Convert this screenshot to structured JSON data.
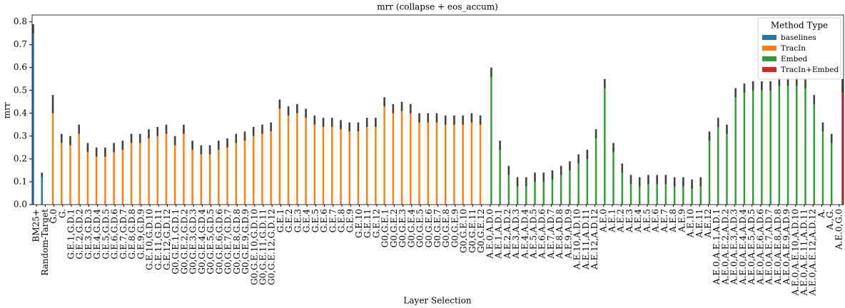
{
  "chart_data": {
    "type": "bar",
    "title": "mrr (collapse + eos_accum)",
    "x_label": "Layer Selection",
    "y_label": "mrr",
    "categories": [
      "BM25+",
      "Random-Target",
      "G.0",
      "G.",
      "G.E.1,G.D.1",
      "G.E.2,G.D.2",
      "G.E.3,G.D.3",
      "G.E.4,G.D.4",
      "G.E.5,G.D.5",
      "G.E.6,G.D.6",
      "G.E.7,G.D.7",
      "G.E.8,G.D.8",
      "G.E.9,G.D.9",
      "G.E.10,G.D.10",
      "G.E.11,G.D.11",
      "G.E.12,G.D.12",
      "G0,G.E.1,G.D.1",
      "G0,G.E.2,G.D.2",
      "G0,G.E.3,G.D.3",
      "G0,G.E.4,G.D.4",
      "G0,G.E.5,G.D.5",
      "G0,G.E.6,G.D.6",
      "G0,G.E.7,G.D.7",
      "G0,G.E.8,G.D.8",
      "G0,G.E.9,G.D.9",
      "G0,G.E.10,G.D.10",
      "G0,G.E.11,G.D.11",
      "G0,G.E.12,G.D.12",
      "G.E.1",
      "G.E.2",
      "G.E.3",
      "G.E.4",
      "G.E.5",
      "G.E.6",
      "G.E.7",
      "G.E.8",
      "G.E.9",
      "G.E.10",
      "G.E.11",
      "G.E.12",
      "G0,G.E.1",
      "G0,G.E.2",
      "G0,G.E.3",
      "G0,G.E.4",
      "G0,G.E.5",
      "G0,G.E.6",
      "G0,G.E.7",
      "G0,G.E.8",
      "G0,G.E.9",
      "G0,G.E.10",
      "G0,G.E.11",
      "G0,G.E.12",
      "A.E.0,A.D.0",
      "A.E.1,A.D.1",
      "A.E.2,A.D.2",
      "A.E.3,A.D.3",
      "A.E.4,A.D.4",
      "A.E.5,A.D.5",
      "A.E.6,A.D.6",
      "A.E.7,A.D.7",
      "A.E.8,A.D.8",
      "A.E.9,A.D.9",
      "A.E.10,A.D.10",
      "A.E.11,A.D.11",
      "A.E.12,A.D.12",
      "A.E.0",
      "A.E.1",
      "A.E.2",
      "A.E.3",
      "A.E.4",
      "A.E.5",
      "A.E.6",
      "A.E.7",
      "A.E.8",
      "A.E.9",
      "A.E.10",
      "A.E.11",
      "A.E.12",
      "A.E.0,A.E.1,A.D.1",
      "A.E.0,A.E.2,A.D.2",
      "A.E.0,A.E.3,A.D.3",
      "A.E.0,A.E.4,A.D.4",
      "A.E.0,A.E.5,A.D.5",
      "A.E.0,A.E.6,A.D.6",
      "A.E.0,A.E.7,A.D.7",
      "A.E.0,A.E.8,A.D.8",
      "A.E.0,A.E.9,A.D.9",
      "A.E.0,A.E.10,A.D.10",
      "A.E.0,A.E.11,A.D.11",
      "A.E.0,A.E.12,A.D.12",
      "A.",
      "A.,G.",
      "A.E.0,G.0"
    ],
    "series": [
      {
        "name": "baselines",
        "color": "#1f77b4",
        "values": [
          0.77,
          0.13,
          null,
          null,
          null,
          null,
          null,
          null,
          null,
          null,
          null,
          null,
          null,
          null,
          null,
          null,
          null,
          null,
          null,
          null,
          null,
          null,
          null,
          null,
          null,
          null,
          null,
          null,
          null,
          null,
          null,
          null,
          null,
          null,
          null,
          null,
          null,
          null,
          null,
          null,
          null,
          null,
          null,
          null,
          null,
          null,
          null,
          null,
          null,
          null,
          null,
          null,
          null,
          null,
          null,
          null,
          null,
          null,
          null,
          null,
          null,
          null,
          null,
          null,
          null,
          null,
          null,
          null,
          null,
          null,
          null,
          null,
          null,
          null,
          null,
          null,
          null,
          null,
          null,
          null,
          null,
          null,
          null,
          null,
          null,
          null,
          null,
          null,
          null,
          null,
          null,
          null,
          null
        ],
        "errors": [
          0.02,
          0.01,
          null,
          null,
          null,
          null,
          null,
          null,
          null,
          null,
          null,
          null,
          null,
          null,
          null,
          null,
          null,
          null,
          null,
          null,
          null,
          null,
          null,
          null,
          null,
          null,
          null,
          null,
          null,
          null,
          null,
          null,
          null,
          null,
          null,
          null,
          null,
          null,
          null,
          null,
          null,
          null,
          null,
          null,
          null,
          null,
          null,
          null,
          null,
          null,
          null,
          null,
          null,
          null,
          null,
          null,
          null,
          null,
          null,
          null,
          null,
          null,
          null,
          null,
          null,
          null,
          null,
          null,
          null,
          null,
          null,
          null,
          null,
          null,
          null,
          null,
          null,
          null,
          null,
          null,
          null,
          null,
          null,
          null,
          null,
          null,
          null,
          null,
          null,
          null,
          null,
          null,
          null
        ]
      },
      {
        "name": "TracIn",
        "color": "#ff7f0e",
        "values": [
          null,
          null,
          0.44,
          0.29,
          0.28,
          0.33,
          0.25,
          0.23,
          0.23,
          0.25,
          0.26,
          0.29,
          0.29,
          0.31,
          0.32,
          0.33,
          0.28,
          0.33,
          0.26,
          0.24,
          0.24,
          0.26,
          0.27,
          0.29,
          0.3,
          0.32,
          0.33,
          0.34,
          0.44,
          0.41,
          0.42,
          0.4,
          0.37,
          0.36,
          0.36,
          0.35,
          0.34,
          0.34,
          0.36,
          0.36,
          0.45,
          0.42,
          0.43,
          0.42,
          0.38,
          0.38,
          0.38,
          0.37,
          0.37,
          0.37,
          0.38,
          0.37,
          null,
          null,
          null,
          null,
          null,
          null,
          null,
          null,
          null,
          null,
          null,
          null,
          null,
          null,
          null,
          null,
          null,
          null,
          null,
          null,
          null,
          null,
          null,
          null,
          null,
          null,
          null,
          null,
          null,
          null,
          null,
          null,
          null,
          null,
          null,
          null,
          null,
          null,
          null,
          null,
          null
        ],
        "errors": [
          null,
          null,
          0.04,
          0.02,
          0.02,
          0.02,
          0.02,
          0.02,
          0.02,
          0.02,
          0.02,
          0.02,
          0.02,
          0.02,
          0.02,
          0.02,
          0.02,
          0.02,
          0.02,
          0.02,
          0.02,
          0.02,
          0.02,
          0.02,
          0.02,
          0.02,
          0.02,
          0.02,
          0.02,
          0.02,
          0.02,
          0.02,
          0.02,
          0.02,
          0.02,
          0.02,
          0.02,
          0.02,
          0.02,
          0.02,
          0.02,
          0.02,
          0.02,
          0.02,
          0.02,
          0.02,
          0.02,
          0.02,
          0.02,
          0.02,
          0.02,
          0.02,
          null,
          null,
          null,
          null,
          null,
          null,
          null,
          null,
          null,
          null,
          null,
          null,
          null,
          null,
          null,
          null,
          null,
          null,
          null,
          null,
          null,
          null,
          null,
          null,
          null,
          null,
          null,
          null,
          null,
          null,
          null,
          null,
          null,
          null,
          null,
          null,
          null,
          null,
          null,
          null,
          null
        ]
      },
      {
        "name": "Embed",
        "color": "#2ca02c",
        "values": [
          null,
          null,
          null,
          null,
          null,
          null,
          null,
          null,
          null,
          null,
          null,
          null,
          null,
          null,
          null,
          null,
          null,
          null,
          null,
          null,
          null,
          null,
          null,
          null,
          null,
          null,
          null,
          null,
          null,
          null,
          null,
          null,
          null,
          null,
          null,
          null,
          null,
          null,
          null,
          null,
          null,
          null,
          null,
          null,
          null,
          null,
          null,
          null,
          null,
          null,
          null,
          null,
          0.58,
          0.26,
          0.15,
          0.1,
          0.1,
          0.12,
          0.12,
          0.13,
          0.15,
          0.17,
          0.2,
          0.22,
          0.31,
          0.53,
          0.25,
          0.16,
          0.11,
          0.1,
          0.11,
          0.11,
          0.11,
          0.1,
          0.1,
          0.09,
          0.1,
          0.3,
          0.36,
          0.33,
          0.49,
          0.51,
          0.52,
          0.52,
          0.52,
          0.54,
          0.54,
          0.54,
          0.53,
          0.46,
          0.34,
          0.29,
          null
        ],
        "errors": [
          null,
          null,
          null,
          null,
          null,
          null,
          null,
          null,
          null,
          null,
          null,
          null,
          null,
          null,
          null,
          null,
          null,
          null,
          null,
          null,
          null,
          null,
          null,
          null,
          null,
          null,
          null,
          null,
          null,
          null,
          null,
          null,
          null,
          null,
          null,
          null,
          null,
          null,
          null,
          null,
          null,
          null,
          null,
          null,
          null,
          null,
          null,
          null,
          null,
          null,
          null,
          null,
          0.02,
          0.02,
          0.02,
          0.02,
          0.02,
          0.02,
          0.02,
          0.02,
          0.02,
          0.02,
          0.02,
          0.02,
          0.02,
          0.02,
          0.02,
          0.02,
          0.02,
          0.02,
          0.02,
          0.02,
          0.02,
          0.02,
          0.02,
          0.02,
          0.02,
          0.02,
          0.02,
          0.02,
          0.02,
          0.02,
          0.02,
          0.02,
          0.02,
          0.02,
          0.02,
          0.02,
          0.02,
          0.02,
          0.02,
          0.02,
          null
        ]
      },
      {
        "name": "TracIn+Embed",
        "color": "#d62728",
        "values": [
          null,
          null,
          null,
          null,
          null,
          null,
          null,
          null,
          null,
          null,
          null,
          null,
          null,
          null,
          null,
          null,
          null,
          null,
          null,
          null,
          null,
          null,
          null,
          null,
          null,
          null,
          null,
          null,
          null,
          null,
          null,
          null,
          null,
          null,
          null,
          null,
          null,
          null,
          null,
          null,
          null,
          null,
          null,
          null,
          null,
          null,
          null,
          null,
          null,
          null,
          null,
          null,
          null,
          null,
          null,
          null,
          null,
          null,
          null,
          null,
          null,
          null,
          null,
          null,
          null,
          null,
          null,
          null,
          null,
          null,
          null,
          null,
          null,
          null,
          null,
          null,
          null,
          null,
          null,
          null,
          null,
          null,
          null,
          null,
          null,
          null,
          null,
          null,
          null,
          null,
          null,
          null,
          0.52
        ],
        "errors": [
          null,
          null,
          null,
          null,
          null,
          null,
          null,
          null,
          null,
          null,
          null,
          null,
          null,
          null,
          null,
          null,
          null,
          null,
          null,
          null,
          null,
          null,
          null,
          null,
          null,
          null,
          null,
          null,
          null,
          null,
          null,
          null,
          null,
          null,
          null,
          null,
          null,
          null,
          null,
          null,
          null,
          null,
          null,
          null,
          null,
          null,
          null,
          null,
          null,
          null,
          null,
          null,
          null,
          null,
          null,
          null,
          null,
          null,
          null,
          null,
          null,
          null,
          null,
          null,
          null,
          null,
          null,
          null,
          null,
          null,
          null,
          null,
          null,
          null,
          null,
          null,
          null,
          null,
          null,
          null,
          null,
          null,
          null,
          null,
          null,
          null,
          null,
          null,
          null,
          null,
          null,
          null,
          0.03
        ]
      }
    ],
    "ylim": [
      0,
      0.83
    ],
    "yticks": [
      {
        "value": 0,
        "label": "0.0"
      },
      0.1,
      0.2,
      0.3,
      0.4,
      0.5,
      0.6,
      0.7,
      0.8
    ],
    "legend_title": "Method Type",
    "legend": "upper right",
    "error_color": "#424242"
  }
}
